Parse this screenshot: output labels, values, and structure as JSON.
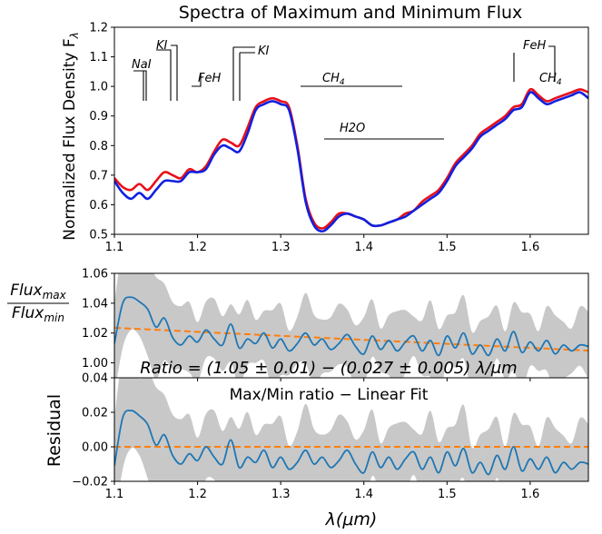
{
  "chart_data": [
    {
      "type": "line",
      "title": "Spectra of Maximum and Minimum Flux",
      "xlabel": "",
      "ylabel": "Normalized Flux Density F",
      "ylabel_sub": "λ",
      "xlim": [
        1.1,
        1.67
      ],
      "ylim": [
        0.5,
        1.2
      ],
      "xticks": [
        "1.1",
        "1.2",
        "1.3",
        "1.4",
        "1.5",
        "1.6"
      ],
      "yticks": [
        "0.5",
        "0.6",
        "0.7",
        "0.8",
        "0.9",
        "1.0",
        "1.1",
        "1.2"
      ],
      "x": [
        1.1,
        1.11,
        1.12,
        1.13,
        1.14,
        1.15,
        1.16,
        1.17,
        1.18,
        1.19,
        1.2,
        1.21,
        1.22,
        1.23,
        1.24,
        1.25,
        1.26,
        1.27,
        1.28,
        1.29,
        1.3,
        1.31,
        1.32,
        1.33,
        1.34,
        1.35,
        1.36,
        1.37,
        1.38,
        1.39,
        1.4,
        1.41,
        1.42,
        1.43,
        1.44,
        1.45,
        1.46,
        1.47,
        1.48,
        1.49,
        1.5,
        1.51,
        1.52,
        1.53,
        1.54,
        1.55,
        1.56,
        1.57,
        1.58,
        1.59,
        1.6,
        1.61,
        1.62,
        1.63,
        1.64,
        1.65,
        1.66,
        1.67
      ],
      "series": [
        {
          "name": "max",
          "color": "#e8101a",
          "values": [
            0.69,
            0.66,
            0.65,
            0.67,
            0.65,
            0.68,
            0.71,
            0.7,
            0.69,
            0.72,
            0.71,
            0.73,
            0.78,
            0.82,
            0.81,
            0.8,
            0.86,
            0.93,
            0.95,
            0.96,
            0.95,
            0.93,
            0.8,
            0.62,
            0.54,
            0.52,
            0.54,
            0.57,
            0.57,
            0.56,
            0.55,
            0.53,
            0.53,
            0.54,
            0.55,
            0.57,
            0.58,
            0.61,
            0.63,
            0.65,
            0.69,
            0.74,
            0.77,
            0.8,
            0.84,
            0.86,
            0.88,
            0.9,
            0.93,
            0.94,
            0.99,
            0.97,
            0.95,
            0.96,
            0.97,
            0.98,
            0.99,
            0.98
          ]
        },
        {
          "name": "min",
          "color": "#1020e0",
          "values": [
            0.68,
            0.64,
            0.62,
            0.64,
            0.62,
            0.65,
            0.68,
            0.68,
            0.68,
            0.71,
            0.71,
            0.72,
            0.77,
            0.8,
            0.79,
            0.78,
            0.84,
            0.92,
            0.94,
            0.95,
            0.94,
            0.92,
            0.79,
            0.61,
            0.53,
            0.51,
            0.53,
            0.56,
            0.57,
            0.56,
            0.55,
            0.53,
            0.53,
            0.54,
            0.55,
            0.56,
            0.58,
            0.6,
            0.62,
            0.64,
            0.68,
            0.73,
            0.76,
            0.79,
            0.83,
            0.85,
            0.87,
            0.89,
            0.92,
            0.93,
            0.98,
            0.96,
            0.94,
            0.95,
            0.96,
            0.97,
            0.98,
            0.96
          ]
        }
      ],
      "annotations": [
        {
          "label": "NaI",
          "x": 1.14,
          "y": 1.06
        },
        {
          "label": "KI",
          "x": 1.17,
          "y": 1.13
        },
        {
          "label": "FeH",
          "x": 1.22,
          "y": 1.01
        },
        {
          "label": "KI",
          "x": 1.25,
          "y": 1.12
        },
        {
          "label": "CH4",
          "x": 1.37,
          "y": 1.01
        },
        {
          "label": "H2O",
          "x": 1.38,
          "y": 0.83
        },
        {
          "label": "FeH",
          "x": 1.6,
          "y": 1.13
        },
        {
          "label": "CH4",
          "x": 1.62,
          "y": 1.01
        }
      ]
    },
    {
      "type": "line",
      "title": "",
      "xlabel": "",
      "ylabel_num": "Flux",
      "ylabel_num_sub": "max",
      "ylabel_den": "Flux",
      "ylabel_den_sub": "min",
      "xlim": [
        1.1,
        1.67
      ],
      "ylim": [
        0.99,
        1.06
      ],
      "yticks": [
        "1.00",
        "1.02",
        "1.04",
        "1.06"
      ],
      "fit_equation": "Ratio = (1.05 ± 0.01) − (0.027 ± 0.005) λ/μm",
      "fit_line": {
        "x": [
          1.1,
          1.67
        ],
        "y": [
          1.0235,
          1.0082
        ],
        "color": "#ff7f0e"
      },
      "band_halfwidth": 0.02,
      "series": [
        {
          "name": "ratio",
          "color": "#1f77b4",
          "values": [
            1.013,
            1.04,
            1.044,
            1.041,
            1.036,
            1.024,
            1.03,
            1.017,
            1.012,
            1.018,
            1.014,
            1.022,
            1.016,
            1.012,
            1.026,
            1.01,
            1.016,
            1.013,
            1.02,
            1.01,
            1.016,
            1.008,
            1.013,
            1.02,
            1.012,
            1.016,
            1.009,
            1.013,
            1.019,
            1.011,
            1.006,
            1.018,
            1.009,
            1.015,
            1.008,
            1.014,
            1.018,
            1.008,
            1.015,
            1.005,
            1.018,
            1.01,
            1.02,
            1.006,
            1.012,
            1.005,
            1.016,
            1.008,
            1.021,
            1.007,
            1.014,
            1.008,
            1.015,
            1.006,
            1.012,
            1.008,
            1.012,
            1.011
          ]
        }
      ]
    },
    {
      "type": "line",
      "title": "Max/Min ratio − Linear Fit",
      "xlabel": "λ(μm)",
      "ylabel": "Residual",
      "xlim": [
        1.1,
        1.67
      ],
      "ylim": [
        -0.02,
        0.04
      ],
      "xticks": [
        "1.1",
        "1.2",
        "1.3",
        "1.4",
        "1.5",
        "1.6"
      ],
      "yticks": [
        "−0.02",
        "0.00",
        "0.02",
        "0.04"
      ],
      "zero_line": {
        "y": 0.0,
        "color": "#ff7f0e"
      },
      "band_halfwidth": 0.02,
      "series": [
        {
          "name": "residual",
          "color": "#1f77b4",
          "values": [
            -0.011,
            0.017,
            0.021,
            0.018,
            0.013,
            0.001,
            0.007,
            -0.005,
            -0.01,
            -0.004,
            -0.008,
            0.0,
            -0.006,
            -0.01,
            0.004,
            -0.012,
            -0.006,
            -0.009,
            -0.002,
            -0.012,
            -0.006,
            -0.013,
            -0.009,
            -0.002,
            -0.01,
            -0.006,
            -0.012,
            -0.008,
            -0.002,
            -0.01,
            -0.015,
            -0.003,
            -0.012,
            -0.006,
            -0.013,
            -0.007,
            -0.003,
            -0.013,
            -0.006,
            -0.015,
            -0.003,
            -0.011,
            -0.001,
            -0.015,
            -0.009,
            -0.016,
            -0.005,
            -0.013,
            0.0,
            -0.014,
            -0.007,
            -0.013,
            -0.006,
            -0.015,
            -0.009,
            -0.013,
            -0.009,
            -0.01
          ]
        }
      ]
    }
  ]
}
